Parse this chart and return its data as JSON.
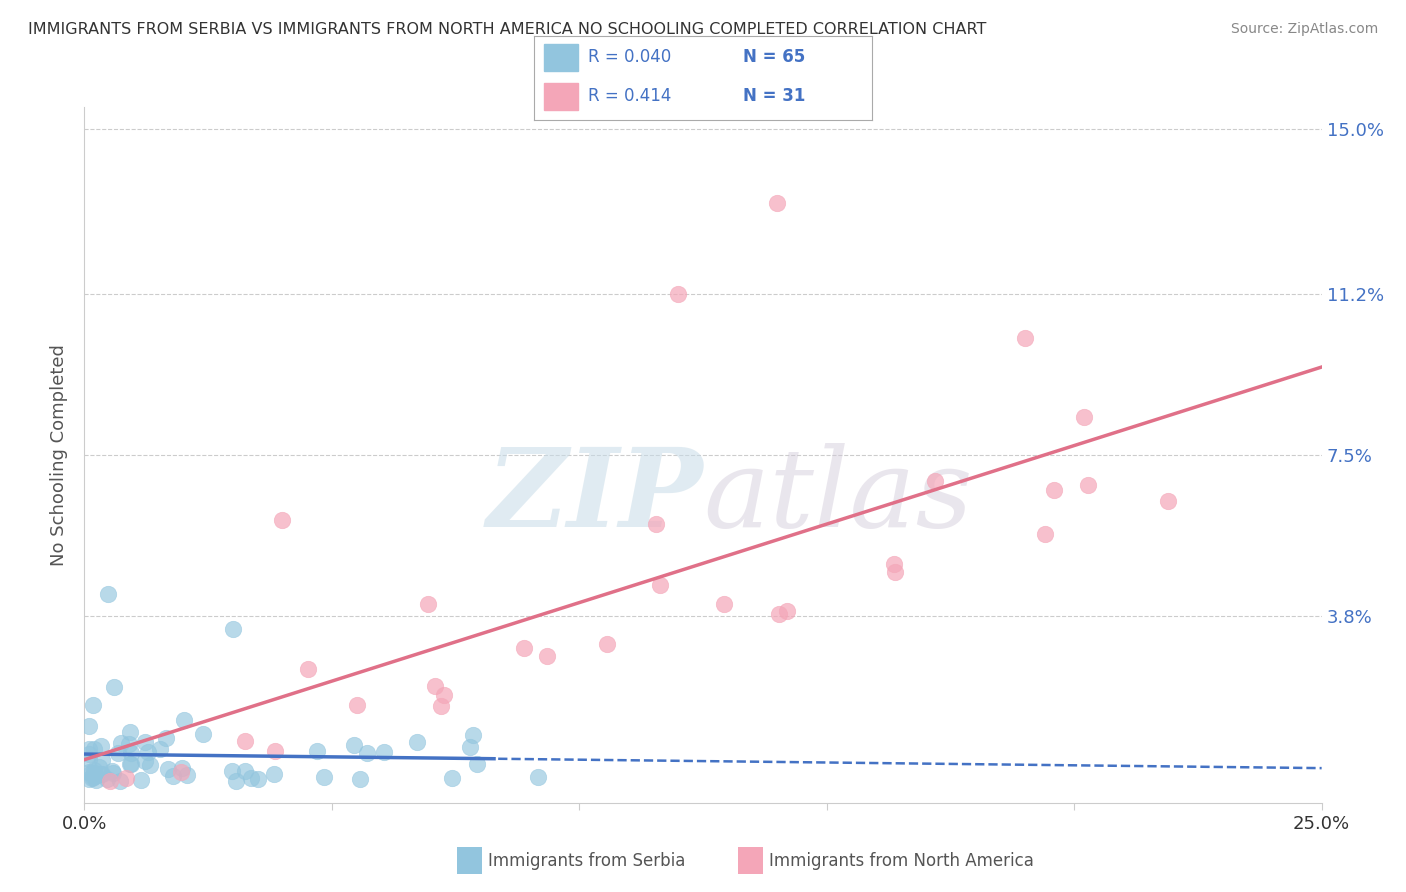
{
  "title": "IMMIGRANTS FROM SERBIA VS IMMIGRANTS FROM NORTH AMERICA NO SCHOOLING COMPLETED CORRELATION CHART",
  "source": "Source: ZipAtlas.com",
  "ylabel_label": "No Schooling Completed",
  "xlim": [
    0.0,
    0.25
  ],
  "ylim": [
    -0.005,
    0.155
  ],
  "yticks": [
    0.0,
    0.038,
    0.075,
    0.112,
    0.15
  ],
  "ytick_labels_right": [
    "",
    "3.8%",
    "7.5%",
    "11.2%",
    "15.0%"
  ],
  "xticks": [
    0.0,
    0.05,
    0.1,
    0.15,
    0.2,
    0.25
  ],
  "xtick_labels": [
    "0.0%",
    "",
    "",
    "",
    "",
    "25.0%"
  ],
  "series1_name": "Immigrants from Serbia",
  "series1_R": "0.040",
  "series1_N": "65",
  "series1_color": "#92c5de",
  "series2_name": "Immigrants from North America",
  "series2_R": "0.414",
  "series2_N": "31",
  "series2_color": "#f4a6b8",
  "trend_color_1": "#4472c4",
  "trend_color_2": "#e07088",
  "r_n_color": "#4472c4",
  "watermark_color": "#d8e8f0",
  "title_color": "#333333",
  "source_color": "#888888",
  "grid_color": "#cccccc",
  "axis_label_color": "#4472c4"
}
